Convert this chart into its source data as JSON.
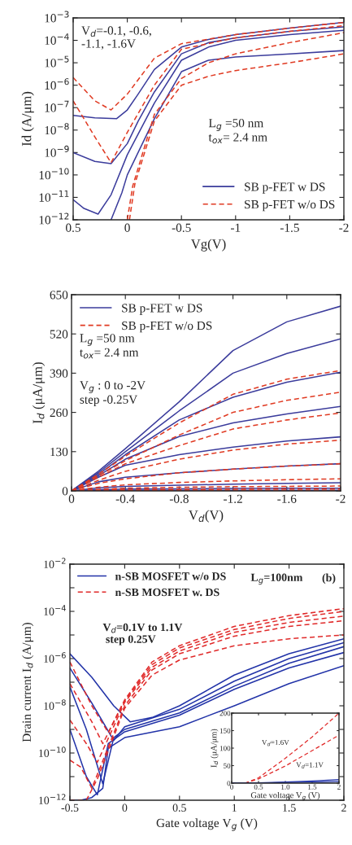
{
  "chart_data": [
    {
      "type": "line",
      "xlabel": "Vg(V)",
      "ylabel": "Id (A/μm)",
      "log": "y",
      "xlim": [
        0.5,
        -2
      ],
      "xticks": [
        0.5,
        0,
        -0.5,
        -1,
        -1.5,
        -2
      ],
      "ylim": [
        1e-12,
        0.001
      ],
      "yticks": [
        {
          "value": 1e-12,
          "label": "10$^{−12}$"
        },
        {
          "value": 1e-11,
          "label": "10$^{−11}$"
        },
        {
          "value": 1e-10,
          "label": "10$^{−10}$"
        },
        {
          "value": 1e-09,
          "label": "10$^{−9}$"
        },
        {
          "value": 1e-08,
          "label": "10$^{−8}$"
        },
        {
          "value": 1e-07,
          "label": "10$^{−7}$"
        },
        {
          "value": 1e-06,
          "label": "10$^{−6}$"
        },
        {
          "value": 1e-05,
          "label": "10$^{−5}$"
        },
        {
          "value": 0.0001,
          "label": "10$^{−4}$"
        },
        {
          "value": 0.001,
          "label": "10$^{−3}$"
        }
      ],
      "legend": "bottom right",
      "grid": false,
      "annotations": [
        "V$_{d}$=-0.1, -0.6,\n-1.1, -1.6V",
        "L$_{g}$ =50 nm\nt$_{ox}$= 2.4 nm"
      ],
      "series": [
        {
          "name": "SB p-FET w DS",
          "color": "#3b3c9c",
          "line_style": "solid",
          "x": [
            0.5,
            0.3,
            0.1,
            0,
            -0.1,
            -0.25,
            -0.5,
            -0.75,
            -1,
            -1.5,
            -2
          ],
          "values": [
            4.5e-08,
            3.5e-08,
            3.2e-08,
            7.9e-08,
            4e-07,
            5e-06,
            5e-05,
            0.00011,
            0.00018,
            0.00035,
            0.00063
          ]
        },
        {
          "color": "#3b3c9c",
          "line_style": "solid",
          "x": [
            0.5,
            0.3,
            0.15,
            0,
            -0.1,
            -0.25,
            -0.5,
            -0.75,
            -1,
            -1.5,
            -2
          ],
          "values": [
            1e-09,
            4e-10,
            3.2e-10,
            2.5e-09,
            2.5e-08,
            5e-07,
            2.5e-05,
            7.9e-05,
            0.00013,
            0.00025,
            0.0004
          ]
        },
        {
          "color": "#3b3c9c",
          "line_style": "solid",
          "x": [
            0.5,
            0.4,
            0.27,
            0.15,
            0,
            -0.25,
            -0.5,
            -0.75,
            -1,
            -1.5,
            -2
          ],
          "values": [
            7.9e-12,
            3.2e-12,
            1.8e-12,
            1.3e-11,
            7.9e-10,
            1.6e-07,
            1.3e-05,
            5e-05,
            0.0001,
            0.00018,
            0.00028
          ]
        },
        {
          "color": "#3b3c9c",
          "line_style": "solid",
          "x": [
            0.15,
            0.05,
            0,
            -0.25,
            -0.5,
            -0.75,
            -1,
            -1.5,
            -2
          ],
          "values": [
            1e-12,
            1.6e-11,
            1e-10,
            3.2e-08,
            4e-06,
            1.3e-05,
            1.8e-05,
            2.5e-05,
            3.5e-05
          ]
        },
        {
          "name": "SB p-FET w/o DS",
          "color": "#e03a22",
          "line_style": "dashed",
          "x": [
            0.5,
            0.3,
            0.15,
            0,
            -0.25,
            -0.5,
            -1,
            -1.5,
            -2
          ],
          "values": [
            2.2e-06,
            2e-07,
            7.9e-08,
            4e-07,
            1.6e-05,
            7.1e-05,
            0.00018,
            0.00035,
            0.00063
          ]
        },
        {
          "color": "#e03a22",
          "line_style": "dashed",
          "x": [
            0.5,
            0.3,
            0.15,
            0,
            -0.25,
            -0.5,
            -1,
            -1.5,
            -2
          ],
          "values": [
            2e-07,
            5e-09,
            3.5e-10,
            7.9e-09,
            1e-06,
            4e-05,
            0.00013,
            0.00025,
            0.00045
          ]
        },
        {
          "color": "#e03a22",
          "line_style": "dashed",
          "x": [
            0,
            -0.05,
            -0.25,
            -0.5,
            -0.75,
            -1,
            -1.5,
            -2
          ],
          "values": [
            1e-12,
            3.2e-11,
            5e-08,
            2e-06,
            1e-05,
            2.5e-05,
            7.9e-05,
            0.00022
          ]
        },
        {
          "color": "#e03a22",
          "line_style": "dashed",
          "x": [
            -0.02,
            -0.07,
            -0.25,
            -0.5,
            -0.75,
            -1,
            -1.5,
            -2
          ],
          "values": [
            1e-12,
            4e-11,
            2.5e-08,
            1e-06,
            2.5e-06,
            4.5e-06,
            1e-05,
            2.5e-05
          ]
        }
      ]
    },
    {
      "type": "line",
      "xlabel": "V$_{d}$(V)",
      "ylabel": "I$_{d}$ (μA/μm)",
      "xlim": [
        0,
        -2
      ],
      "xticks": [
        0,
        -0.4,
        -0.8,
        -1.2,
        -1.6,
        -2
      ],
      "ylim": [
        0,
        650
      ],
      "yticks": [
        0,
        130,
        260,
        390,
        520,
        650
      ],
      "legend": "top left",
      "grid": false,
      "annotations": [
        "L$_{g}$ =50 nm\nt$_{ox}$= 2.4 nm",
        "V$_{g}$ : 0 to -2V\nstep -0.25V"
      ],
      "x": [
        0,
        -0.2,
        -0.4,
        -0.8,
        -1.2,
        -1.6,
        -2
      ],
      "series": [
        {
          "name": "SB p-FET w DS",
          "color": "#3b3c9c",
          "line_style": "solid",
          "values": [
            0,
            65,
            140,
            295,
            465,
            560,
            612
          ]
        },
        {
          "color": "#3b3c9c",
          "line_style": "solid",
          "values": [
            0,
            60,
            130,
            265,
            390,
            455,
            504
          ]
        },
        {
          "color": "#3b3c9c",
          "line_style": "solid",
          "values": [
            0,
            55,
            120,
            235,
            310,
            360,
            393
          ]
        },
        {
          "color": "#3b3c9c",
          "line_style": "solid",
          "values": [
            0,
            50,
            105,
            180,
            225,
            255,
            280
          ]
        },
        {
          "color": "#3b3c9c",
          "line_style": "solid",
          "values": [
            0,
            45,
            85,
            120,
            145,
            165,
            179
          ]
        },
        {
          "color": "#3b3c9c",
          "line_style": "solid",
          "values": [
            0,
            30,
            45,
            60,
            72,
            82,
            90
          ]
        },
        {
          "color": "#3b3c9c",
          "line_style": "solid",
          "values": [
            0,
            10,
            15,
            19,
            22,
            25,
            27
          ]
        },
        {
          "color": "#3b3c9c",
          "line_style": "solid",
          "values": [
            0,
            4,
            6,
            7,
            8,
            9,
            9
          ]
        },
        {
          "color": "#3b3c9c",
          "line_style": "solid",
          "values": [
            0,
            1,
            2,
            2,
            2,
            2,
            2
          ]
        },
        {
          "name": "SB p-FET w/o DS",
          "color": "#e03a22",
          "line_style": "dashed",
          "values": [
            0,
            55,
            115,
            225,
            320,
            370,
            399
          ]
        },
        {
          "color": "#e03a22",
          "line_style": "dashed",
          "values": [
            0,
            50,
            100,
            185,
            260,
            300,
            327
          ]
        },
        {
          "color": "#e03a22",
          "line_style": "dashed",
          "values": [
            0,
            45,
            90,
            150,
            205,
            235,
            258
          ]
        },
        {
          "color": "#e03a22",
          "line_style": "dashed",
          "values": [
            0,
            35,
            65,
            105,
            135,
            155,
            168
          ]
        },
        {
          "color": "#e03a22",
          "line_style": "dashed",
          "values": [
            0,
            25,
            40,
            60,
            72,
            82,
            90
          ]
        },
        {
          "color": "#e03a22",
          "line_style": "dashed",
          "values": [
            0,
            12,
            20,
            28,
            33,
            37,
            40
          ]
        },
        {
          "color": "#e03a22",
          "line_style": "dashed",
          "values": [
            0,
            5,
            9,
            12,
            14,
            15,
            16
          ]
        },
        {
          "color": "#e03a22",
          "line_style": "dashed",
          "values": [
            0,
            2,
            4,
            5,
            6,
            7,
            7
          ]
        },
        {
          "color": "#e03a22",
          "line_style": "dashed",
          "values": [
            0,
            0,
            1,
            2,
            2,
            2,
            2
          ]
        }
      ]
    },
    {
      "type": "line",
      "xlabel": "Gate voltage V$_{g}$ (V)",
      "ylabel": "Drain current I$_{d}$ (A/μm)",
      "log": "y",
      "xlim": [
        -0.5,
        2
      ],
      "xticks": [
        -0.5,
        0,
        0.5,
        1,
        1.5,
        2
      ],
      "ylim": [
        1e-12,
        0.01
      ],
      "yticks": [
        {
          "value": 1e-12,
          "label": "10$^{−12}$"
        },
        {
          "value": 1e-11,
          "label": null
        },
        {
          "value": 1e-10,
          "label": "10$^{−10}$"
        },
        {
          "value": 1e-09,
          "label": null
        },
        {
          "value": 1e-08,
          "label": "10$^{−8}$"
        },
        {
          "value": 1e-07,
          "label": null
        },
        {
          "value": 1e-06,
          "label": "10$^{−6}$"
        },
        {
          "value": 1e-05,
          "label": null
        },
        {
          "value": 0.0001,
          "label": "10$^{−4}$"
        },
        {
          "value": 0.001,
          "label": null
        },
        {
          "value": 0.01,
          "label": "10$^{−2}$"
        }
      ],
      "legend": "top left",
      "grid": false,
      "annotations": [
        "V$_{d}$=0.1V to 1.1V\n step 0.25V",
        "L$_{g}$=100nm",
        "(b)"
      ],
      "series": [
        {
          "name": "n-SB MOSFET w/o DS",
          "color": "#2233a8",
          "line_style": "solid",
          "x": [
            -0.5,
            -0.3,
            -0.1,
            0.05,
            0.25,
            0.5,
            1,
            1.5,
            2
          ],
          "values": [
            1.6e-06,
            1.6e-07,
            1e-08,
            2.1e-09,
            3.2e-09,
            1e-08,
            2e-07,
            1.6e-06,
            6.9e-06
          ]
        },
        {
          "color": "#2233a8",
          "line_style": "solid",
          "x": [
            -0.5,
            -0.3,
            -0.1,
            0,
            0.5,
            1,
            1.5,
            2
          ],
          "values": [
            4e-07,
            1.3e-08,
            3.4e-10,
            1.3e-09,
            7.1e-09,
            1.1e-07,
            1e-06,
            4.7e-06
          ]
        },
        {
          "color": "#2233a8",
          "line_style": "solid",
          "x": [
            -0.5,
            -0.35,
            -0.2,
            -0.1,
            0,
            0.5,
            1,
            1.5,
            2
          ],
          "values": [
            6.3e-08,
            1e-09,
            5e-12,
            4.5e-10,
            1e-09,
            5e-09,
            6.8e-08,
            6.3e-07,
            3.2e-06
          ]
        },
        {
          "color": "#2233a8",
          "line_style": "solid",
          "x": [
            -0.5,
            -0.35,
            -0.25,
            -0.15,
            0,
            0.5,
            1,
            1.5,
            2
          ],
          "values": [
            1e-09,
            1e-11,
            1.7e-12,
            2.5e-10,
            7.9e-10,
            4e-09,
            5e-08,
            4e-07,
            1.8e-06
          ]
        },
        {
          "color": "#2233a8",
          "line_style": "solid",
          "x": [
            -0.5,
            -0.4,
            -0.3,
            -0.2,
            -0.15,
            0,
            0.5,
            1,
            1.5,
            2
          ],
          "values": [
            1e-12,
            1e-12,
            1.3e-12,
            3.2e-12,
            1.6e-10,
            4.5e-10,
            1.3e-09,
            1e-08,
            8.7e-08,
            5e-07
          ]
        },
        {
          "name": "n-SB MOSFET w. DS",
          "color": "#e02a2a",
          "line_style": "dashed",
          "x": [
            -0.5,
            -0.3,
            -0.15,
            -0.05,
            0,
            0.25,
            0.5,
            1,
            1.5,
            2
          ],
          "values": [
            7.2e-07,
            1e-08,
            7.4e-10,
            6.3e-09,
            1.8e-08,
            7.2e-07,
            3.5e-06,
            2.3e-05,
            6.6e-05,
            0.00013
          ]
        },
        {
          "color": "#e02a2a",
          "line_style": "dashed",
          "x": [
            -0.5,
            -0.3,
            -0.2,
            0,
            0.25,
            0.5,
            1,
            1.5,
            2
          ],
          "values": [
            8.7e-08,
            2.1e-09,
            2.5e-10,
            1.6e-08,
            5.6e-07,
            2.8e-06,
            1.7e-05,
            5e-05,
            0.0001
          ]
        },
        {
          "color": "#e02a2a",
          "line_style": "dashed",
          "x": [
            -0.5,
            -0.35,
            -0.25,
            0,
            0.25,
            0.5,
            1,
            1.5,
            2
          ],
          "values": [
            2.5e-09,
            2.5e-10,
            4e-11,
            1.4e-08,
            4.3e-07,
            2.1e-06,
            1.3e-05,
            3.4e-05,
            6.3e-05
          ]
        },
        {
          "color": "#e02a2a",
          "line_style": "dashed",
          "x": [
            -0.5,
            -0.4,
            -0.3,
            0,
            0.25,
            0.5,
            1,
            1.5,
            2
          ],
          "values": [
            5e-11,
            2.5e-11,
            3.2e-12,
            1e-08,
            3.3e-07,
            1.6e-06,
            8.9e-06,
            2.3e-05,
            4e-05
          ]
        },
        {
          "color": "#e02a2a",
          "line_style": "dashed",
          "x": [
            -0.5,
            -0.35,
            -0.25,
            0,
            0.25,
            0.5,
            1,
            1.5,
            2
          ],
          "values": [
            1e-12,
            1e-12,
            7.9e-12,
            7.9e-09,
            2e-07,
            8.7e-07,
            3.5e-06,
            6.9e-06,
            1e-05
          ]
        }
      ]
    },
    {
      "type": "line",
      "xlabel": "Gate voltage V$_{g}$ (V)",
      "ylabel": "I$_{d}$ (μA/μm)",
      "xlim": [
        0,
        2
      ],
      "xticks": [
        0,
        0.5,
        {
          "value": 1,
          "label": "1.0"
        },
        1.5,
        2
      ],
      "ylim": [
        0,
        200
      ],
      "yticks": [
        0,
        50,
        100,
        150,
        200
      ],
      "grid": false,
      "annotations": [
        "V$_{d}$=1.6V",
        "V$_{d}$=1.1V"
      ],
      "series": [
        {
          "color": "#e02a2a",
          "line_style": "dashed",
          "x": [
            0,
            0.25,
            0.5,
            1,
            1.5,
            2
          ],
          "values": [
            0,
            0,
            15,
            71,
            132,
            200
          ]
        },
        {
          "color": "#e02a2a",
          "line_style": "dashed",
          "x": [
            0,
            0.25,
            0.5,
            1,
            1.5,
            2
          ],
          "values": [
            0,
            0,
            12,
            49,
            93,
            137
          ]
        },
        {
          "color": "#2233a8",
          "line_style": "solid",
          "x": [
            0,
            0.5,
            1,
            1.5,
            2
          ],
          "values": [
            0,
            1,
            3,
            6,
            10
          ]
        },
        {
          "color": "#2233a8",
          "line_style": "solid",
          "x": [
            0,
            0.5,
            1,
            1.5,
            2
          ],
          "values": [
            0,
            0,
            2,
            3,
            5
          ]
        }
      ]
    }
  ]
}
